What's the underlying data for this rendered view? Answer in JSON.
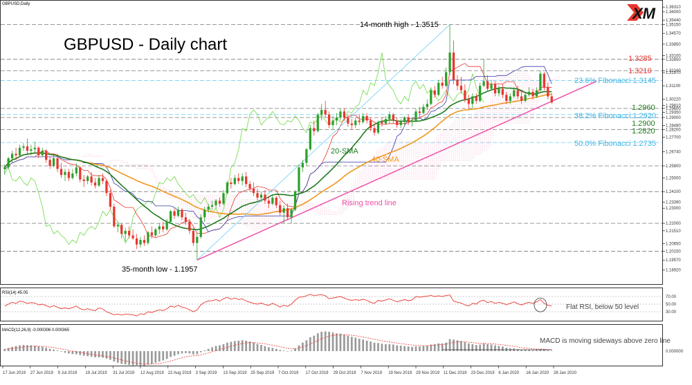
{
  "window_title": "GBPUSD,Daily",
  "title": "GBPUSD - Daily chart",
  "logo_text": "XM",
  "colors": {
    "bull": "#2ca02c",
    "bear": "#e8362f",
    "sma20": "#1f7a1f",
    "sma40": "#f0961e",
    "trend": "#ee4fa6",
    "fib": "#3cb4e6",
    "red_label": "#e8362f",
    "green_label": "#1f7a1f",
    "tenkan": "#e8362f",
    "kijun": "#3a3aa8",
    "chikou": "#7ddc57",
    "cloud": "#f08ab6"
  },
  "chart_data": {
    "type": "candlestick",
    "y_ticks": [
      "1.36310",
      "1.36000",
      "1.35440",
      "1.35150",
      "1.34570",
      "1.33850",
      "1.33100",
      "1.32850",
      "1.32100",
      "1.31970",
      "1.31100",
      "1.30220",
      "1.29810",
      "1.29600",
      "1.29350",
      "1.29000",
      "1.28480",
      "1.28200",
      "1.27700",
      "1.26740",
      "1.25800",
      "1.25000",
      "1.24100",
      "1.23390",
      "1.23000",
      "1.22000",
      "1.21510",
      "1.20650",
      "1.20150",
      "1.19570",
      "1.18920"
    ],
    "ylim": [
      1.183,
      1.365
    ],
    "x_ticks": [
      "17 Jun 2019",
      "27 Jun 2019",
      "9 Jul 2019",
      "19 Jul 2019",
      "31 Jul 2019",
      "12 Aug 2019",
      "22 Aug 2019",
      "3 Sep 2019",
      "13 Sep 2019",
      "25 Sep 2019",
      "7 Oct 2019",
      "17 Oct 2019",
      "29 Oct 2019",
      "7 Nov 2019",
      "19 Nov 2019",
      "29 Nov 2019",
      "11 Dec 2019",
      "23 Dec 2019",
      "6 Jan 2020",
      "16 Jan 2020",
      "28 Jan 2020"
    ],
    "candles": [
      [
        1.256,
        1.259,
        1.252,
        1.257
      ],
      [
        1.257,
        1.264,
        1.256,
        1.263
      ],
      [
        1.263,
        1.268,
        1.26,
        1.266
      ],
      [
        1.266,
        1.27,
        1.262,
        1.265
      ],
      [
        1.265,
        1.272,
        1.264,
        1.27
      ],
      [
        1.27,
        1.273,
        1.268,
        1.271
      ],
      [
        1.271,
        1.276,
        1.266,
        1.268
      ],
      [
        1.268,
        1.272,
        1.265,
        1.269
      ],
      [
        1.269,
        1.274,
        1.267,
        1.27
      ],
      [
        1.27,
        1.271,
        1.263,
        1.265
      ],
      [
        1.265,
        1.27,
        1.264,
        1.268
      ],
      [
        1.268,
        1.269,
        1.26,
        1.262
      ],
      [
        1.262,
        1.264,
        1.256,
        1.258
      ],
      [
        1.258,
        1.265,
        1.257,
        1.263
      ],
      [
        1.263,
        1.266,
        1.254,
        1.256
      ],
      [
        1.256,
        1.26,
        1.25,
        1.252
      ],
      [
        1.252,
        1.256,
        1.248,
        1.254
      ],
      [
        1.254,
        1.256,
        1.248,
        1.25
      ],
      [
        1.25,
        1.256,
        1.249,
        1.253
      ],
      [
        1.253,
        1.26,
        1.251,
        1.257
      ],
      [
        1.257,
        1.258,
        1.247,
        1.249
      ],
      [
        1.249,
        1.252,
        1.244,
        1.248
      ],
      [
        1.248,
        1.252,
        1.246,
        1.251
      ],
      [
        1.251,
        1.254,
        1.245,
        1.247
      ],
      [
        1.247,
        1.25,
        1.243,
        1.245
      ],
      [
        1.245,
        1.252,
        1.244,
        1.25
      ],
      [
        1.25,
        1.253,
        1.246,
        1.248
      ],
      [
        1.248,
        1.249,
        1.238,
        1.24
      ],
      [
        1.24,
        1.242,
        1.229,
        1.231
      ],
      [
        1.231,
        1.233,
        1.217,
        1.218
      ],
      [
        1.218,
        1.221,
        1.214,
        1.219
      ],
      [
        1.219,
        1.22,
        1.21,
        1.213
      ],
      [
        1.213,
        1.217,
        1.208,
        1.215
      ],
      [
        1.215,
        1.218,
        1.21,
        1.212
      ],
      [
        1.212,
        1.216,
        1.209,
        1.21
      ],
      [
        1.21,
        1.213,
        1.203,
        1.206
      ],
      [
        1.206,
        1.211,
        1.204,
        1.209
      ],
      [
        1.209,
        1.212,
        1.205,
        1.207
      ],
      [
        1.207,
        1.215,
        1.206,
        1.214
      ],
      [
        1.214,
        1.218,
        1.21,
        1.212
      ],
      [
        1.212,
        1.217,
        1.211,
        1.216
      ],
      [
        1.216,
        1.22,
        1.213,
        1.218
      ],
      [
        1.218,
        1.221,
        1.214,
        1.216
      ],
      [
        1.216,
        1.223,
        1.215,
        1.221
      ],
      [
        1.221,
        1.229,
        1.22,
        1.228
      ],
      [
        1.228,
        1.23,
        1.223,
        1.225
      ],
      [
        1.225,
        1.231,
        1.224,
        1.229
      ],
      [
        1.229,
        1.23,
        1.222,
        1.224
      ],
      [
        1.224,
        1.227,
        1.219,
        1.221
      ],
      [
        1.221,
        1.223,
        1.213,
        1.215
      ],
      [
        1.215,
        1.217,
        1.205,
        1.207
      ],
      [
        1.207,
        1.214,
        1.1957,
        1.211
      ],
      [
        1.211,
        1.226,
        1.21,
        1.224
      ],
      [
        1.224,
        1.231,
        1.221,
        1.229
      ],
      [
        1.229,
        1.233,
        1.227,
        1.231
      ],
      [
        1.231,
        1.235,
        1.229,
        1.232
      ],
      [
        1.232,
        1.236,
        1.23,
        1.235
      ],
      [
        1.235,
        1.237,
        1.231,
        1.233
      ],
      [
        1.233,
        1.242,
        1.232,
        1.24
      ],
      [
        1.24,
        1.248,
        1.239,
        1.247
      ],
      [
        1.247,
        1.25,
        1.243,
        1.246
      ],
      [
        1.246,
        1.252,
        1.245,
        1.25
      ],
      [
        1.25,
        1.253,
        1.246,
        1.248
      ],
      [
        1.248,
        1.253,
        1.245,
        1.251
      ],
      [
        1.251,
        1.254,
        1.244,
        1.246
      ],
      [
        1.246,
        1.248,
        1.241,
        1.243
      ],
      [
        1.243,
        1.247,
        1.238,
        1.24
      ],
      [
        1.24,
        1.243,
        1.235,
        1.237
      ],
      [
        1.237,
        1.241,
        1.234,
        1.239
      ],
      [
        1.239,
        1.242,
        1.233,
        1.235
      ],
      [
        1.235,
        1.238,
        1.23,
        1.233
      ],
      [
        1.233,
        1.239,
        1.232,
        1.237
      ],
      [
        1.237,
        1.238,
        1.23,
        1.232
      ],
      [
        1.232,
        1.235,
        1.225,
        1.227
      ],
      [
        1.227,
        1.232,
        1.22,
        1.23
      ],
      [
        1.23,
        1.233,
        1.222,
        1.224
      ],
      [
        1.224,
        1.23,
        1.22,
        1.229
      ],
      [
        1.229,
        1.242,
        1.228,
        1.241
      ],
      [
        1.241,
        1.259,
        1.24,
        1.257
      ],
      [
        1.257,
        1.262,
        1.254,
        1.26
      ],
      [
        1.26,
        1.27,
        1.258,
        1.269
      ],
      [
        1.269,
        1.285,
        1.268,
        1.283
      ],
      [
        1.283,
        1.288,
        1.278,
        1.281
      ],
      [
        1.281,
        1.293,
        1.28,
        1.292
      ],
      [
        1.292,
        1.299,
        1.288,
        1.295
      ],
      [
        1.295,
        1.301,
        1.29,
        1.292
      ],
      [
        1.292,
        1.294,
        1.283,
        1.285
      ],
      [
        1.285,
        1.291,
        1.282,
        1.288
      ],
      [
        1.288,
        1.293,
        1.285,
        1.29
      ],
      [
        1.29,
        1.296,
        1.288,
        1.294
      ],
      [
        1.294,
        1.296,
        1.288,
        1.29
      ],
      [
        1.29,
        1.292,
        1.284,
        1.286
      ],
      [
        1.286,
        1.289,
        1.282,
        1.285
      ],
      [
        1.285,
        1.29,
        1.283,
        1.288
      ],
      [
        1.288,
        1.292,
        1.285,
        1.287
      ],
      [
        1.287,
        1.293,
        1.286,
        1.291
      ],
      [
        1.291,
        1.293,
        1.286,
        1.288
      ],
      [
        1.288,
        1.29,
        1.281,
        1.283
      ],
      [
        1.283,
        1.286,
        1.278,
        1.28
      ],
      [
        1.28,
        1.288,
        1.279,
        1.287
      ],
      [
        1.287,
        1.29,
        1.284,
        1.286
      ],
      [
        1.286,
        1.291,
        1.285,
        1.289
      ],
      [
        1.289,
        1.294,
        1.286,
        1.292
      ],
      [
        1.292,
        1.293,
        1.286,
        1.288
      ],
      [
        1.288,
        1.29,
        1.283,
        1.285
      ],
      [
        1.285,
        1.289,
        1.283,
        1.287
      ],
      [
        1.287,
        1.291,
        1.285,
        1.29
      ],
      [
        1.29,
        1.292,
        1.285,
        1.287
      ],
      [
        1.287,
        1.29,
        1.284,
        1.288
      ],
      [
        1.288,
        1.296,
        1.287,
        1.294
      ],
      [
        1.294,
        1.297,
        1.29,
        1.293
      ],
      [
        1.293,
        1.299,
        1.292,
        1.297
      ],
      [
        1.297,
        1.302,
        1.295,
        1.299
      ],
      [
        1.299,
        1.31,
        1.298,
        1.308
      ],
      [
        1.308,
        1.311,
        1.303,
        1.305
      ],
      [
        1.305,
        1.315,
        1.304,
        1.313
      ],
      [
        1.313,
        1.317,
        1.309,
        1.311
      ],
      [
        1.311,
        1.323,
        1.31,
        1.32
      ],
      [
        1.32,
        1.3515,
        1.318,
        1.333
      ],
      [
        1.333,
        1.341,
        1.312,
        1.315
      ],
      [
        1.315,
        1.318,
        1.308,
        1.311
      ],
      [
        1.311,
        1.317,
        1.306,
        1.308
      ],
      [
        1.308,
        1.312,
        1.3,
        1.302
      ],
      [
        1.302,
        1.305,
        1.296,
        1.299
      ],
      [
        1.299,
        1.306,
        1.296,
        1.304
      ],
      [
        1.304,
        1.306,
        1.299,
        1.301
      ],
      [
        1.301,
        1.313,
        1.3,
        1.311
      ],
      [
        1.311,
        1.3285,
        1.31,
        1.314
      ],
      [
        1.314,
        1.318,
        1.307,
        1.309
      ],
      [
        1.309,
        1.315,
        1.308,
        1.312
      ],
      [
        1.312,
        1.314,
        1.304,
        1.306
      ],
      [
        1.306,
        1.311,
        1.304,
        1.309
      ],
      [
        1.309,
        1.312,
        1.303,
        1.305
      ],
      [
        1.305,
        1.307,
        1.299,
        1.301
      ],
      [
        1.301,
        1.306,
        1.299,
        1.304
      ],
      [
        1.304,
        1.31,
        1.303,
        1.308
      ],
      [
        1.308,
        1.311,
        1.302,
        1.304
      ],
      [
        1.304,
        1.307,
        1.299,
        1.301
      ],
      [
        1.301,
        1.307,
        1.3,
        1.305
      ],
      [
        1.305,
        1.31,
        1.304,
        1.307
      ],
      [
        1.307,
        1.309,
        1.302,
        1.304
      ],
      [
        1.304,
        1.31,
        1.303,
        1.308
      ],
      [
        1.308,
        1.321,
        1.307,
        1.319
      ],
      [
        1.319,
        1.32,
        1.308,
        1.31
      ],
      [
        1.31,
        1.313,
        1.302,
        1.304
      ],
      [
        1.304,
        1.306,
        1.299,
        1.3
      ]
    ],
    "sma20_label": "20-SMA",
    "sma40_label": "40-SMA",
    "trend_label": "Rising trend line",
    "high_label": "14-month high - 1.3515",
    "low_label": "35-month low - 1.1957",
    "levels_red": [
      "1.3285",
      "1.3210"
    ],
    "levels_green": [
      "1.2960",
      "1.2900",
      "1.2820"
    ],
    "fib_labels": [
      "23.6% Fibonacci 1.3145",
      "38.2% Fibonacci 1.2920",
      "50.0% Fibonacci 1.2735"
    ],
    "hlines": [
      1.3515,
      1.3285,
      1.321,
      1.296,
      1.29,
      1.282,
      1.258,
      1.241,
      1.22,
      1.2015
    ],
    "fib_levels": [
      1.3145,
      1.292,
      1.2735
    ],
    "rsi": {
      "label": "RSI(14) 45.05",
      "ticks": [
        "70.00",
        "50.00",
        "30.00"
      ],
      "annotation": "Flat RSI, below 50 level",
      "values": [
        45,
        50,
        55,
        52,
        58,
        56,
        52,
        54,
        53,
        48,
        50,
        46,
        42,
        46,
        42,
        38,
        40,
        38,
        41,
        45,
        38,
        35,
        38,
        35,
        33,
        40,
        37,
        30,
        26,
        22,
        24,
        21,
        24,
        23,
        22,
        19,
        25,
        23,
        30,
        28,
        32,
        35,
        33,
        38,
        45,
        42,
        47,
        42,
        40,
        35,
        30,
        35,
        48,
        55,
        58,
        59,
        62,
        58,
        64,
        68,
        63,
        66,
        62,
        64,
        58,
        55,
        52,
        50,
        53,
        49,
        47,
        52,
        48,
        42,
        47,
        44,
        50,
        60,
        68,
        69,
        72,
        76,
        72,
        74,
        75,
        72,
        64,
        66,
        68,
        70,
        66,
        62,
        60,
        62,
        60,
        63,
        60,
        55,
        52,
        60,
        58,
        61,
        64,
        60,
        56,
        59,
        62,
        59,
        61,
        70,
        68,
        70,
        71,
        73,
        70,
        72,
        70,
        73,
        74,
        58,
        55,
        53,
        48,
        45,
        52,
        50,
        58,
        60,
        54,
        57,
        52,
        55,
        52,
        49,
        52,
        56,
        51,
        48,
        52,
        55,
        52,
        56,
        62,
        52,
        47,
        45
      ]
    },
    "macd": {
      "label": "MACD(12,26,9) -0.000306 0.000365",
      "ticks": [
        "0.000000"
      ],
      "annotation": "MACD is moving sideways above zero line",
      "values": [
        0.001,
        0.0016,
        0.0022,
        0.0026,
        0.003,
        0.0032,
        0.0031,
        0.003,
        0.0028,
        0.0025,
        0.0022,
        0.0018,
        0.0012,
        0.0008,
        0.0003,
        -0.0003,
        -0.0008,
        -0.0012,
        -0.0015,
        -0.0016,
        -0.002,
        -0.0024,
        -0.0026,
        -0.0029,
        -0.0032,
        -0.0032,
        -0.0034,
        -0.0039,
        -0.0045,
        -0.0054,
        -0.006,
        -0.0066,
        -0.0069,
        -0.0072,
        -0.0074,
        -0.0077,
        -0.0076,
        -0.0075,
        -0.007,
        -0.0066,
        -0.006,
        -0.0054,
        -0.0048,
        -0.004,
        -0.003,
        -0.0024,
        -0.0016,
        -0.0012,
        -0.001,
        -0.0012,
        -0.0017,
        -0.0016,
        -0.0006,
        0.0004,
        0.0012,
        0.002,
        0.0027,
        0.003,
        0.0036,
        0.0044,
        0.0048,
        0.0052,
        0.0054,
        0.0056,
        0.0054,
        0.005,
        0.0044,
        0.0037,
        0.0032,
        0.0026,
        0.002,
        0.0017,
        0.0012,
        0.0006,
        0.0003,
        -0.0002,
        0.0003,
        0.0014,
        0.003,
        0.0044,
        0.0056,
        0.0072,
        0.008,
        0.0092,
        0.01,
        0.0102,
        0.01,
        0.0096,
        0.0092,
        0.009,
        0.0086,
        0.008,
        0.0074,
        0.007,
        0.0064,
        0.006,
        0.0054,
        0.005,
        0.0044,
        0.0042,
        0.0038,
        0.0036,
        0.0036,
        0.0034,
        0.003,
        0.0028,
        0.0026,
        0.0024,
        0.0022,
        0.0024,
        0.0024,
        0.0026,
        0.0028,
        0.0034,
        0.0036,
        0.004,
        0.004,
        0.0044,
        0.0062,
        0.006,
        0.0056,
        0.0052,
        0.0046,
        0.004,
        0.0036,
        0.0032,
        0.0034,
        0.004,
        0.0036,
        0.0034,
        0.003,
        0.0027,
        0.0024,
        0.0018,
        0.0015,
        0.0014,
        0.001,
        0.0006,
        0.0006,
        0.0006,
        0.0004,
        0.0006,
        0.001,
        0.0008,
        0.0004,
        0.0002
      ]
    }
  }
}
